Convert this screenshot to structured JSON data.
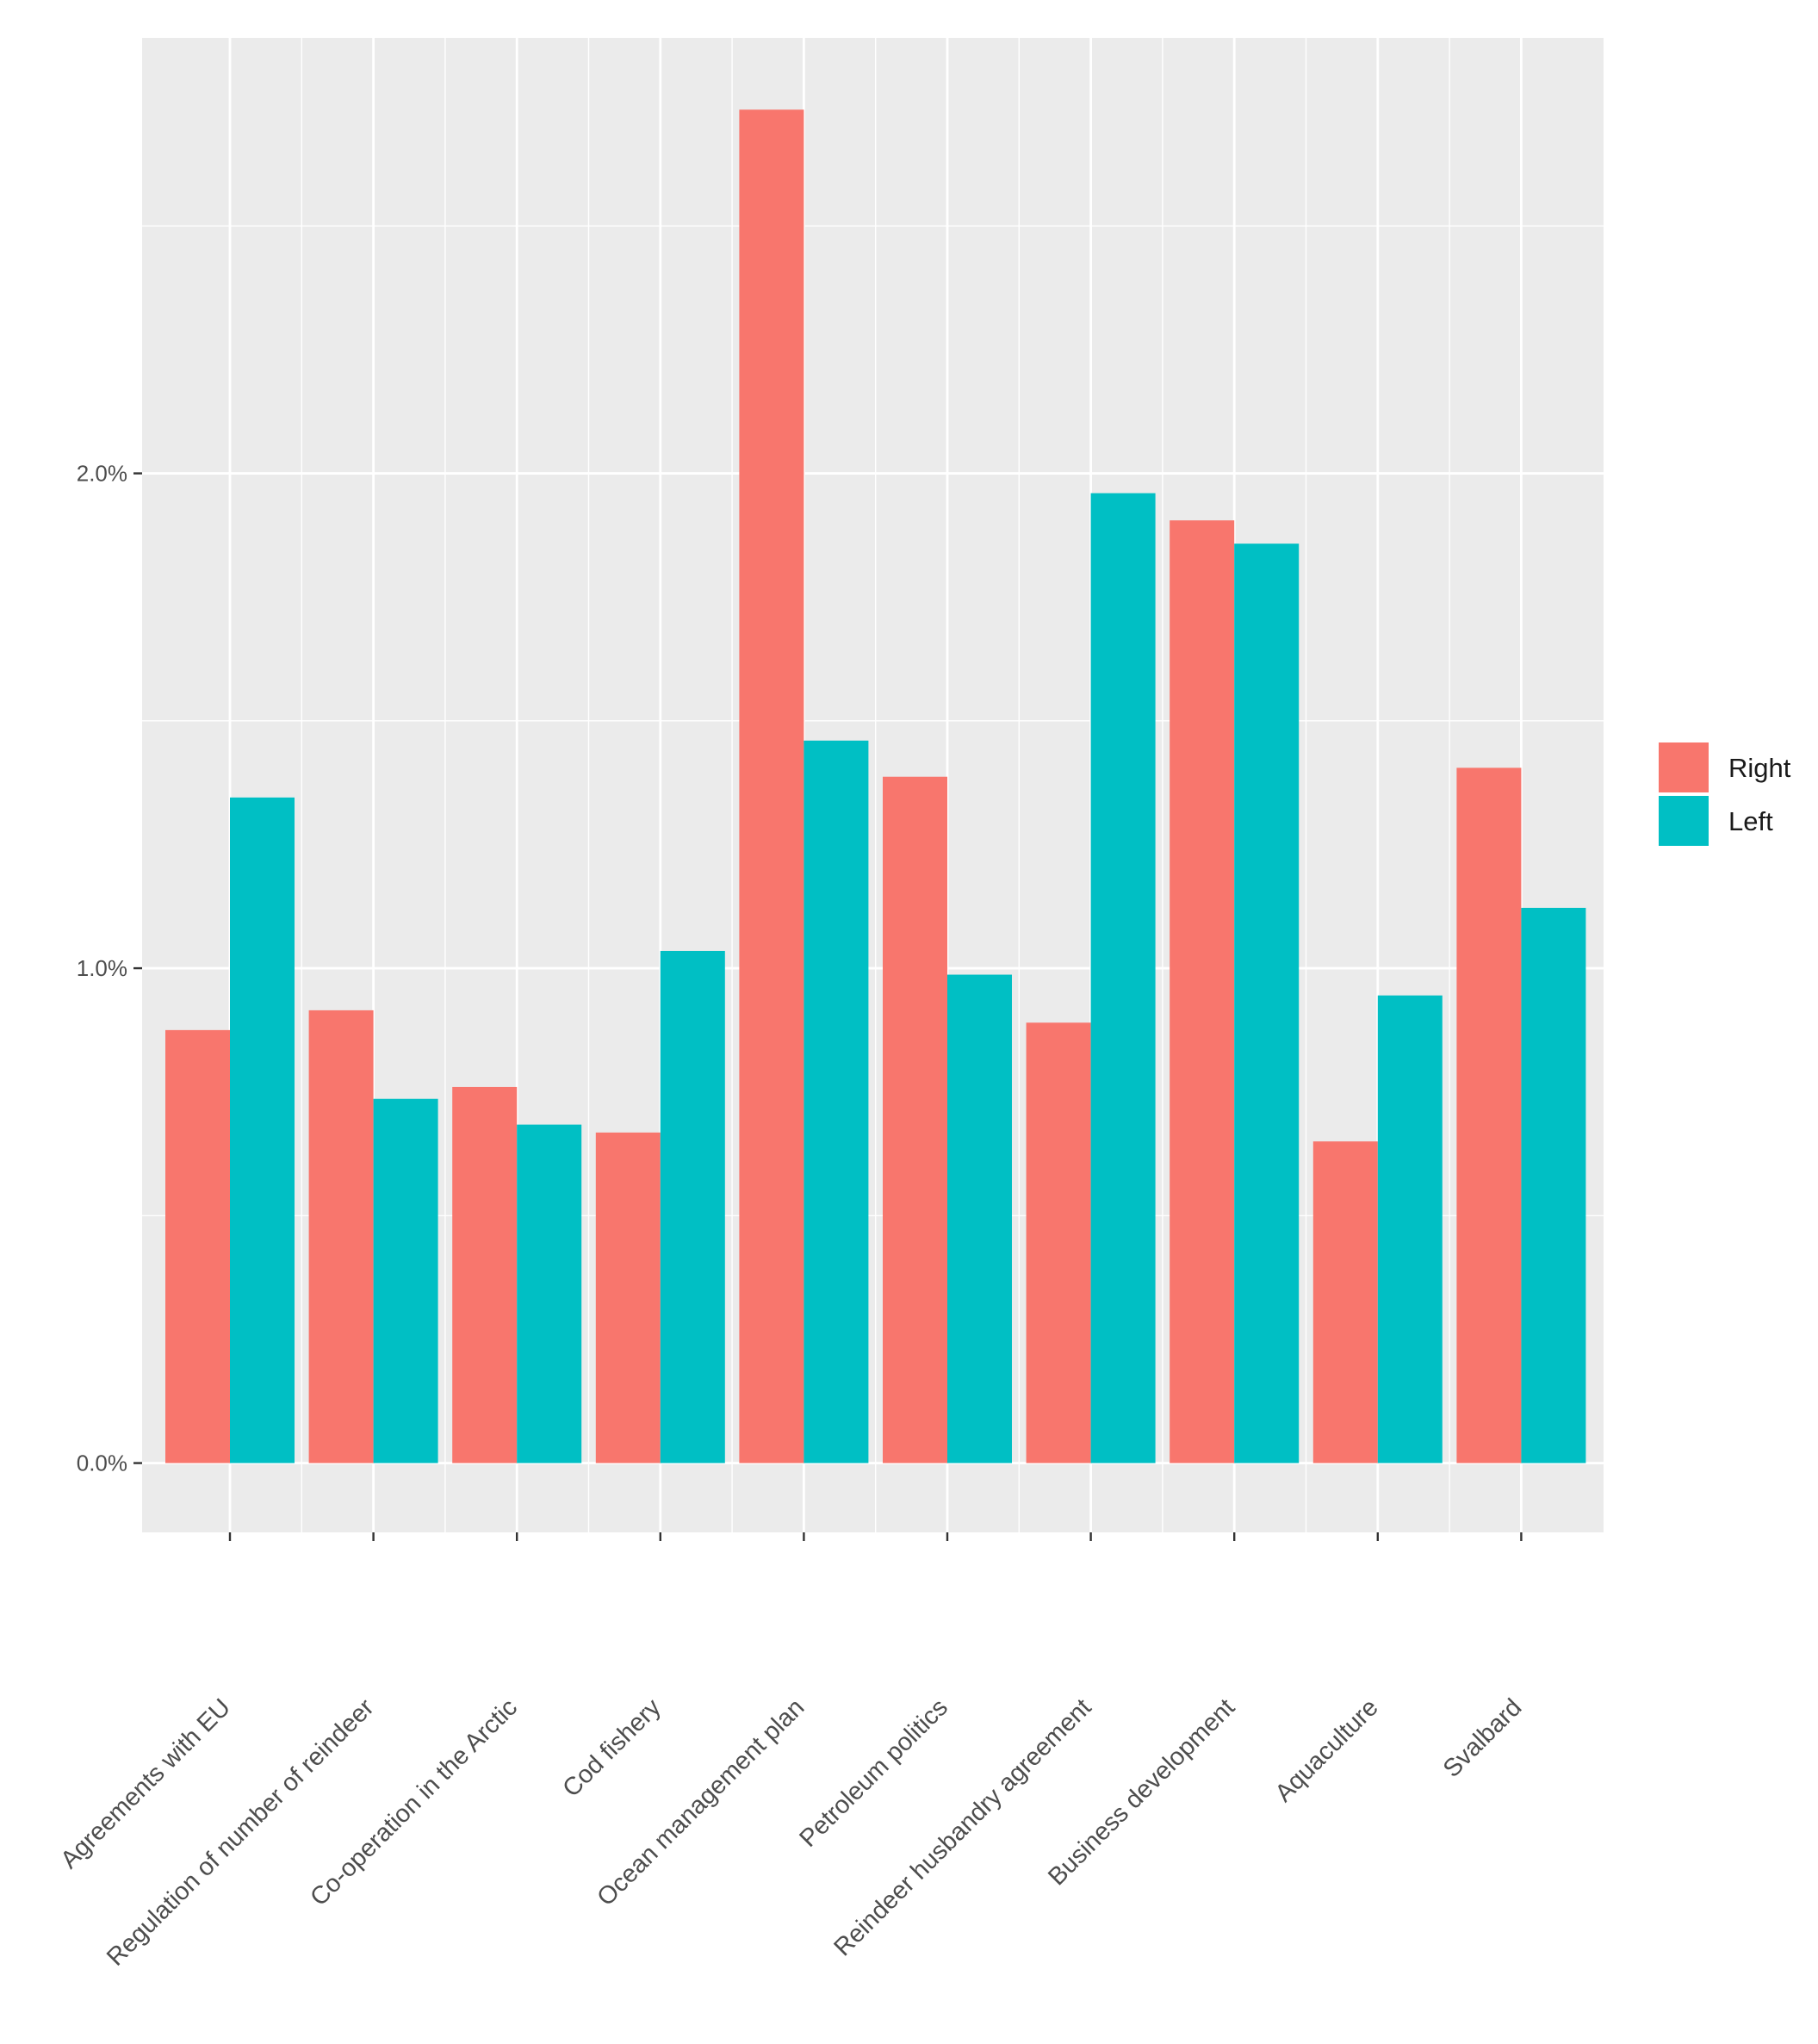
{
  "chart_data": {
    "type": "bar",
    "title": "",
    "xlabel": "",
    "ylabel": "",
    "categories": [
      "Agreements with EU",
      "Regulation of number of reindeer",
      "Co-operation in the Arctic",
      "Cod fishery",
      "Ocean management plan",
      "Petroleum politics",
      "Reindeer husbandry agreement",
      "Business development",
      "Aquaculture",
      "Svalbard"
    ],
    "series": [
      {
        "name": "Right",
        "color": "#F8766D",
        "values": [
          0.875,
          0.915,
          0.76,
          0.668,
          2.735,
          1.387,
          0.89,
          1.905,
          0.65,
          1.405
        ]
      },
      {
        "name": "Left",
        "color": "#00BFC4",
        "values": [
          1.345,
          0.736,
          0.684,
          1.035,
          1.46,
          0.987,
          1.96,
          1.858,
          0.945,
          1.122
        ]
      }
    ],
    "ylim": [
      -0.14,
      2.88
    ],
    "y_ticks": [
      {
        "value": 0,
        "label": "0.0%"
      },
      {
        "value": 1,
        "label": "1.0%"
      },
      {
        "value": 2,
        "label": "2.0%"
      }
    ],
    "y_minor_ticks": [
      0.5,
      1.5,
      2.5
    ],
    "grid": true,
    "legend_position": "right"
  }
}
